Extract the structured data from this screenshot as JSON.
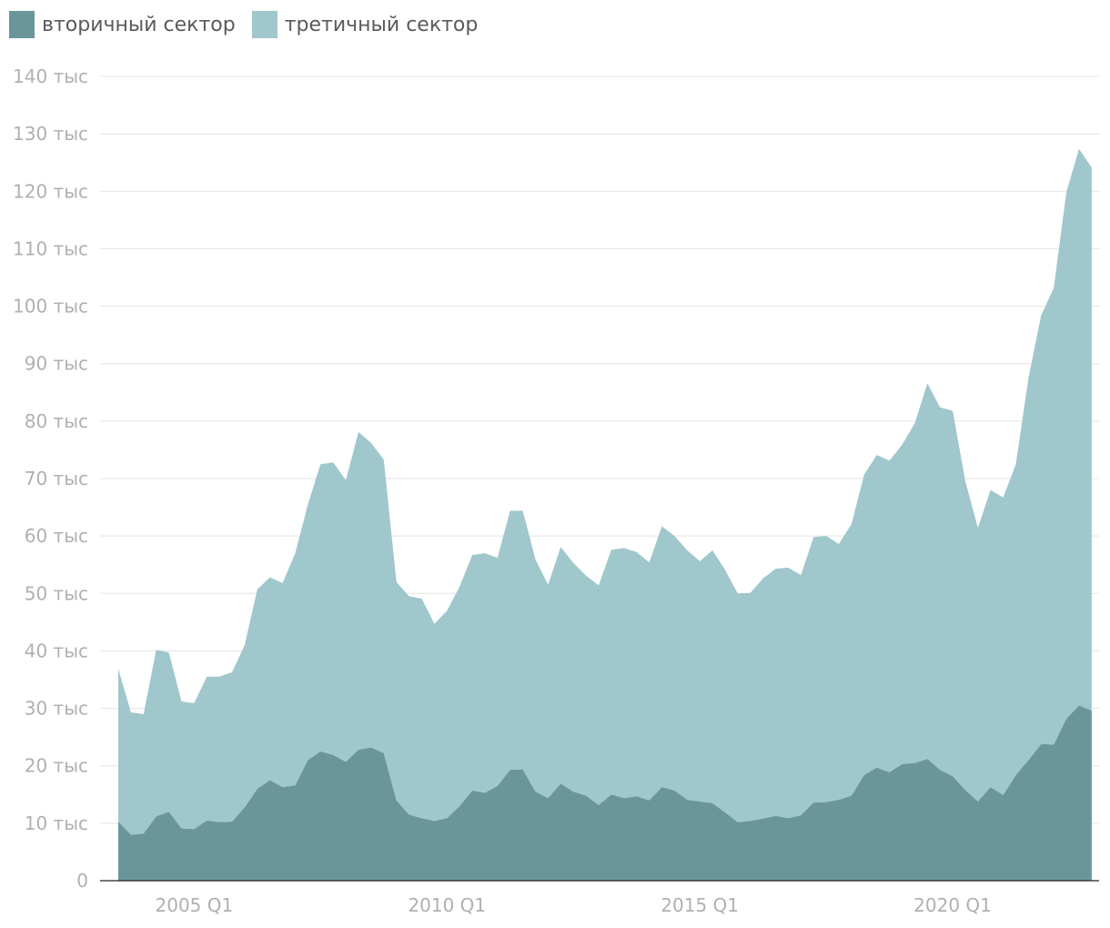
{
  "legend": [
    {
      "label": "вторичный сектор",
      "color": "#6a969b"
    },
    {
      "label": "третичный сектор",
      "color": "#9fc7cc"
    }
  ],
  "chart_data": {
    "type": "area",
    "stacked": true,
    "title": "",
    "xlabel": "",
    "ylabel": "",
    "ylim": [
      0,
      140000
    ],
    "y_ticks": [
      0,
      10000,
      20000,
      30000,
      40000,
      50000,
      60000,
      70000,
      80000,
      90000,
      100000,
      110000,
      120000,
      130000,
      140000
    ],
    "y_tick_labels": [
      "0",
      "10 тыс",
      "20 тыс",
      "30 тыс",
      "40 тыс",
      "50 тыс",
      "60 тыс",
      "70 тыс",
      "80 тыс",
      "90 тыс",
      "100 тыс",
      "110 тыс",
      "120 тыс",
      "130 тыс",
      "140 тыс"
    ],
    "x_ticks": [
      "2005 Q1",
      "2010 Q1",
      "2015 Q1",
      "2020 Q1"
    ],
    "grid": true,
    "legend_position": "top-left",
    "x_start": "2003 Q3",
    "x_end": "2022 Q3",
    "series": [
      {
        "name": "вторичный сектор",
        "color": "#6a969b",
        "values": [
          10300,
          8000,
          8200,
          11200,
          12000,
          9100,
          9000,
          10500,
          10200,
          10300,
          12800,
          16000,
          17500,
          16300,
          16600,
          21000,
          22500,
          21900,
          20700,
          22800,
          23200,
          22200,
          14000,
          11500,
          10900,
          10400,
          10900,
          13000,
          15700,
          15300,
          16500,
          19300,
          19400,
          15500,
          14400,
          16900,
          15500,
          14800,
          13200,
          15000,
          14400,
          14700,
          14000,
          16300,
          15700,
          14100,
          13800,
          13500,
          11900,
          10200,
          10400,
          10800,
          11300,
          10900,
          11400,
          13600,
          13700,
          14100,
          14800,
          18400,
          19700,
          18900,
          20300,
          20500,
          21200,
          19300,
          18200,
          15800,
          13800,
          16300,
          14900,
          18400,
          21000,
          23800,
          23700,
          28200,
          30500,
          29600
        ]
      },
      {
        "name": "третичный сектор",
        "color": "#9fc7cc",
        "values": [
          26600,
          21300,
          20800,
          29000,
          27700,
          22100,
          21900,
          25000,
          25300,
          26000,
          28200,
          34700,
          35300,
          35500,
          40400,
          44500,
          50000,
          50900,
          49000,
          55300,
          53000,
          51100,
          38000,
          38000,
          38200,
          34300,
          36100,
          38200,
          41000,
          41700,
          39700,
          45100,
          45000,
          40400,
          37100,
          41200,
          39800,
          38300,
          38200,
          42600,
          43500,
          42500,
          41400,
          45400,
          44300,
          43400,
          41800,
          44000,
          42200,
          39800,
          39700,
          41800,
          43000,
          43600,
          41800,
          46200,
          46300,
          44500,
          47300,
          52300,
          54400,
          54200,
          55600,
          59100,
          65400,
          63100,
          63600,
          53800,
          47600,
          51700,
          51800,
          54100,
          66500,
          74600,
          79500,
          91700,
          96900,
          94500
        ]
      }
    ]
  }
}
